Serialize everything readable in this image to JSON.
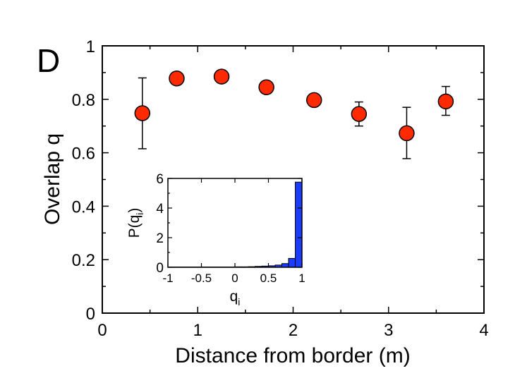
{
  "panel_label": "D",
  "colors": {
    "marker_fill": "#ff2a00",
    "marker_stroke": "#000000",
    "bar_fill": "#1a3cff",
    "axis": "#000000"
  },
  "chart_data": [
    {
      "type": "scatter",
      "title": "",
      "xlabel": "Distance from border (m)",
      "ylabel": "Overlap q",
      "xlim": [
        0,
        4
      ],
      "ylim": [
        0,
        1
      ],
      "x_ticks": [
        0,
        1,
        2,
        3,
        4
      ],
      "x_tick_labels": [
        "0",
        "1",
        "2",
        "3",
        "4"
      ],
      "y_ticks": [
        0,
        0.2,
        0.4,
        0.6,
        0.8,
        1
      ],
      "y_tick_labels": [
        "0",
        "0.2",
        "0.4",
        "0.6",
        "0.8",
        "1"
      ],
      "grid": false,
      "series": [
        {
          "x": [
            0.42,
            0.78,
            1.25,
            1.72,
            2.22,
            2.69,
            3.19,
            3.6
          ],
          "y": [
            0.748,
            0.878,
            0.885,
            0.845,
            0.797,
            0.745,
            0.673,
            0.792
          ],
          "err_low": [
            0.615,
            null,
            null,
            null,
            null,
            0.7,
            0.578,
            0.74
          ],
          "err_high": [
            0.88,
            null,
            null,
            null,
            null,
            0.79,
            0.77,
            0.848
          ]
        }
      ]
    },
    {
      "type": "bar",
      "title": "",
      "xlabel": "q",
      "xlabel_sub": "i",
      "ylabel": "P(q",
      "ylabel_sub": "i",
      "ylabel_close": ")",
      "xlim": [
        -1,
        1
      ],
      "ylim": [
        0,
        6
      ],
      "x_ticks": [
        -1,
        -0.5,
        0,
        0.5,
        1
      ],
      "x_tick_labels": [
        "-1",
        "-0.5",
        "0",
        "0.5",
        "1"
      ],
      "y_ticks": [
        0,
        2,
        4,
        6
      ],
      "y_tick_labels": [
        "0",
        "2",
        "4",
        "6"
      ],
      "bin_edges": [
        -1,
        -0.9,
        -0.8,
        -0.7,
        -0.6,
        -0.5,
        -0.4,
        -0.3,
        -0.2,
        -0.1,
        0,
        0.1,
        0.2,
        0.3,
        0.4,
        0.5,
        0.6,
        0.7,
        0.8,
        0.9,
        1.0
      ],
      "values": [
        0.02,
        0.02,
        0.02,
        0.02,
        0.02,
        0.02,
        0.02,
        0.02,
        0.02,
        0.02,
        0.03,
        0.03,
        0.04,
        0.06,
        0.08,
        0.1,
        0.15,
        0.25,
        0.6,
        5.75
      ]
    }
  ]
}
